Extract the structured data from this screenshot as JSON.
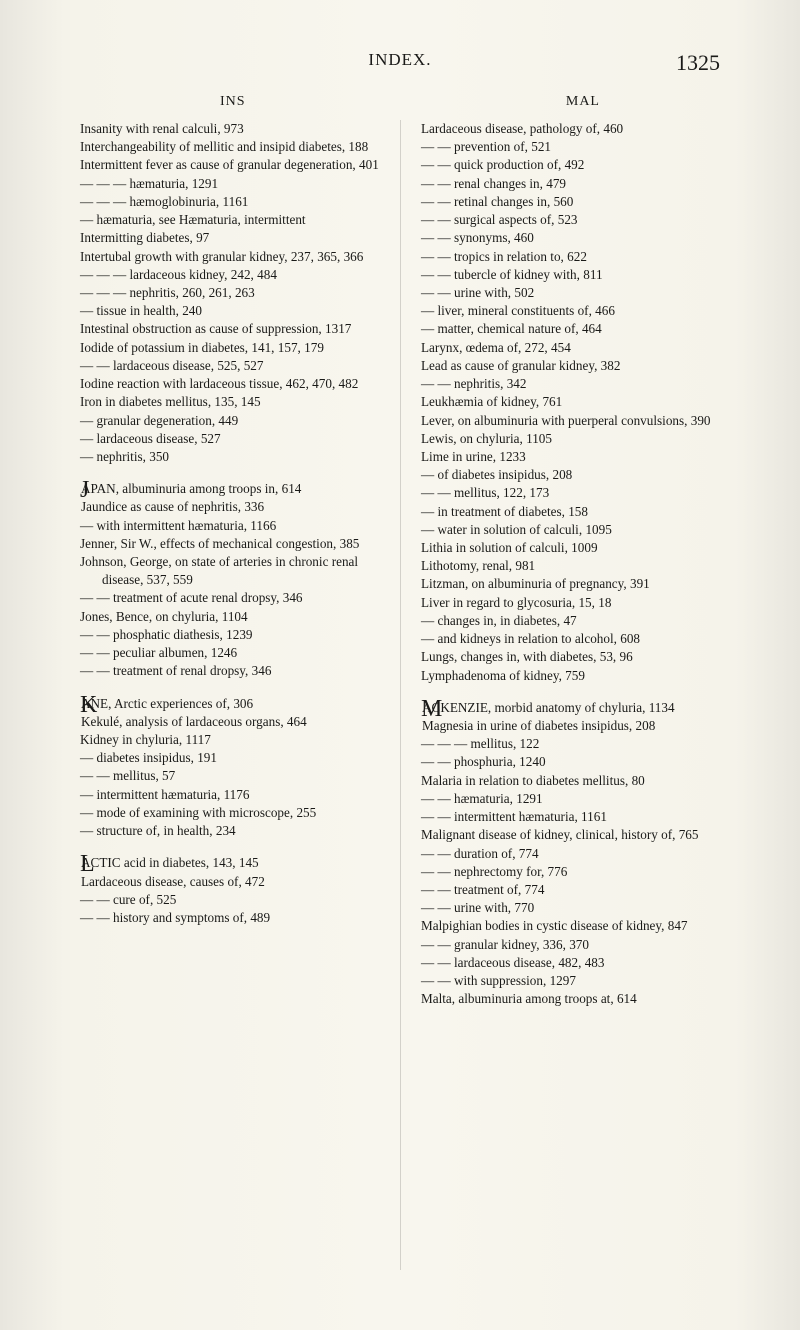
{
  "header": {
    "title": "INDEX.",
    "pageNumber": "1325",
    "leftHead": "INS",
    "rightHead": "MAL"
  },
  "col1": {
    "block1": [
      "Insanity with renal calculi, 973",
      "Interchangeability of mellitic and insipid diabetes, 188",
      "Intermittent fever as cause of granular degeneration, 401",
      "— — — hæmaturia, 1291",
      "— — — hæmoglobinuria, 1161",
      "— hæmaturia, see Hæmaturia, intermittent",
      "Intermitting diabetes, 97",
      "Intertubal growth with granular kidney, 237, 365, 366",
      "— — — lardaceous kidney, 242, 484",
      "— — — nephritis, 260, 261, 263",
      "— tissue in health, 240",
      "Intestinal obstruction as cause of suppression, 1317",
      "Iodide of potassium in diabetes, 141, 157, 179",
      "— — lardaceous disease, 525, 527",
      "Iodine reaction with lardaceous tissue, 462, 470, 482",
      "Iron in diabetes mellitus, 135, 145",
      "— granular degeneration, 449",
      "— lardaceous disease, 527",
      "— nephritis, 350"
    ],
    "blockJ_first": "JAPAN, albuminuria among troops in, 614",
    "blockJ": [
      "Jaundice as cause of nephritis, 336",
      "— with intermittent hæmaturia, 1166",
      "Jenner, Sir W., effects of mechanical congestion, 385",
      "Johnson, George, on state of arteries in chronic renal disease, 537, 559",
      "— — treatment of acute renal dropsy, 346",
      "Jones, Bence, on chyluria, 1104",
      "— — phosphatic diathesis, 1239",
      "— — peculiar albumen, 1246",
      "— — treatment of renal dropsy, 346"
    ],
    "blockK_first": "KANE, Arctic experiences of, 306",
    "blockK": [
      "Kekulé, analysis of lardaceous organs, 464",
      "Kidney in chyluria, 1117",
      "— diabetes insipidus, 191",
      "— — mellitus, 57",
      "— intermittent hæmaturia, 1176",
      "— mode of examining with microscope, 255",
      "— structure of, in health, 234"
    ],
    "blockL_first": "LACTIC acid in diabetes, 143, 145",
    "blockL": [
      "Lardaceous disease, causes of, 472",
      "— — cure of, 525",
      "— — history and symptoms of, 489"
    ]
  },
  "col2": {
    "block1": [
      "Lardaceous disease, pathology of, 460",
      "— — prevention of, 521",
      "— — quick production of, 492",
      "— — renal changes in, 479",
      "— — retinal changes in, 560",
      "— — surgical aspects of, 523",
      "— — synonyms, 460",
      "— — tropics in relation to, 622",
      "— — tubercle of kidney with, 811",
      "— — urine with, 502",
      "— liver, mineral constituents of, 466",
      "— matter, chemical nature of, 464",
      "Larynx, œdema of, 272, 454",
      "Lead as cause of granular kidney, 382",
      "— — nephritis, 342",
      "Leukhæmia of kidney, 761",
      "Lever, on albuminuria with puerperal convulsions, 390",
      "Lewis, on chyluria, 1105",
      "Lime in urine, 1233",
      "— of diabetes insipidus, 208",
      "— — mellitus, 122, 173",
      "— in treatment of diabetes, 158",
      "— water in solution of calculi, 1095",
      "Lithia in solution of calculi, 1009",
      "Lithotomy, renal, 981",
      "Litzman, on albuminuria of pregnancy, 391",
      "Liver in regard to glycosuria, 15, 18",
      "— changes in, in diabetes, 47",
      "— and kidneys in relation to alcohol, 608",
      "Lungs, changes in, with diabetes, 53, 96",
      "Lymphadenoma of kidney, 759"
    ],
    "blockM_first": "MACKENZIE, morbid anatomy of chyluria, 1134",
    "blockM": [
      "Magnesia in urine of diabetes insipidus, 208",
      "— — — mellitus, 122",
      "— — phosphuria, 1240",
      "Malaria in relation to diabetes mellitus, 80",
      "— — hæmaturia, 1291",
      "— — intermittent hæmaturia, 1161",
      "Malignant disease of kidney, clinical, history of, 765",
      "— — duration of, 774",
      "— — nephrectomy for, 776",
      "— — treatment of, 774",
      "— — urine with, 770",
      "Malpighian bodies in cystic disease of kidney, 847",
      "— — granular kidney, 336, 370",
      "— — lardaceous disease, 482, 483",
      "— — with suppression, 1297",
      "Malta, albuminuria among troops at, 614"
    ]
  }
}
